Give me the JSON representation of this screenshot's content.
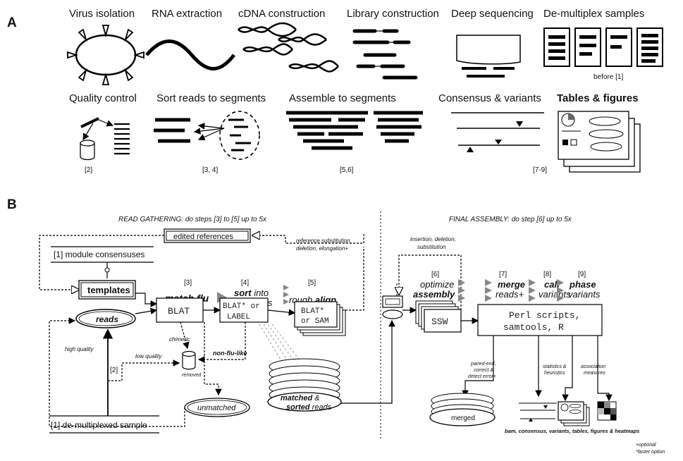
{
  "panel_a": {
    "label": "A",
    "step1": "Virus isolation",
    "step2": "RNA extraction",
    "step3": "cDNA construction",
    "step4": "Library construction",
    "step5": "Deep sequencing",
    "step6": "De-multiplex samples",
    "step6_ref": "before [1]",
    "step7": "Quality control",
    "step7_ref": "[2]",
    "step8": "Sort reads to segments",
    "step8_ref": "[3, 4]",
    "step9": "Assemble to segments",
    "step9_ref": "[5,6]",
    "step10": "Consensus & variants",
    "step10_ref": "[7-9]",
    "step11": "Tables & figures"
  },
  "panel_b": {
    "label": "B",
    "read_gathering": "READ GATHERING: do steps [3] to [5] up to 5x",
    "final_assembly": "FINAL ASSEMBLY: do step [6] up to 5x",
    "edited_references": "edited references",
    "module_consensuses": "[1] module consensuses",
    "templates": "templates",
    "reads": "reads",
    "demultiplexed_sample": "[1] de-multiplexed sample",
    "high_quality": "high quality",
    "low_quality": "low quality",
    "ref2": "[2]",
    "chimeric": "chimeric",
    "removed": "removed",
    "non_flu_like": "non-flu-like",
    "unmatched": "unmatched",
    "step3_num": "[3]",
    "step3_bold": "match flu",
    "step4_num": "[4]",
    "step4_bold": "sort",
    "step4_rest": "into",
    "step4_line2": "segments",
    "step5_num": "[5]",
    "step5_plain": "rough",
    "step5_bold": "align",
    "blat": "BLAT",
    "blat_star_or": "BLAT* or",
    "label_tool": "LABEL",
    "blat_star": "BLAT*",
    "or_sam": "or SAM",
    "matched_bold": "matched",
    "matched_rest": " &",
    "sorted_bold": "sorted",
    "sorted_rest": " reads",
    "ref_substitution_1": "reference substitution,",
    "ref_substitution_2": "deletion, elongation+",
    "ins_del_1": "insertion, deletion,",
    "ins_del_2": "substitution",
    "step6_num": "[6]",
    "step6_plain": "optimize",
    "step6_bold": "assembly",
    "ssw": "SSW",
    "step7_num": "[7]",
    "step7_bold": "merge",
    "step7_line2": "reads+",
    "step8_num": "[8]",
    "step8_bold": "call",
    "step8_line2": "variants",
    "step9_num": "[9]",
    "step9_bold": "phase",
    "step9_line2": "variants",
    "perl_1": "Perl scripts,",
    "perl_2": "samtools, R",
    "paired_1": "paired-end,",
    "paired_2": "correct &",
    "paired_3": "detect error+",
    "stats_1": "statistics &",
    "stats_2": "heuristics",
    "assoc_1": "association",
    "assoc_2": "measures",
    "merged": "merged",
    "outputs": "bam, consensus, variants, tables, figures & heatmaps",
    "optional": "+optional",
    "faster": "*faster option"
  }
}
